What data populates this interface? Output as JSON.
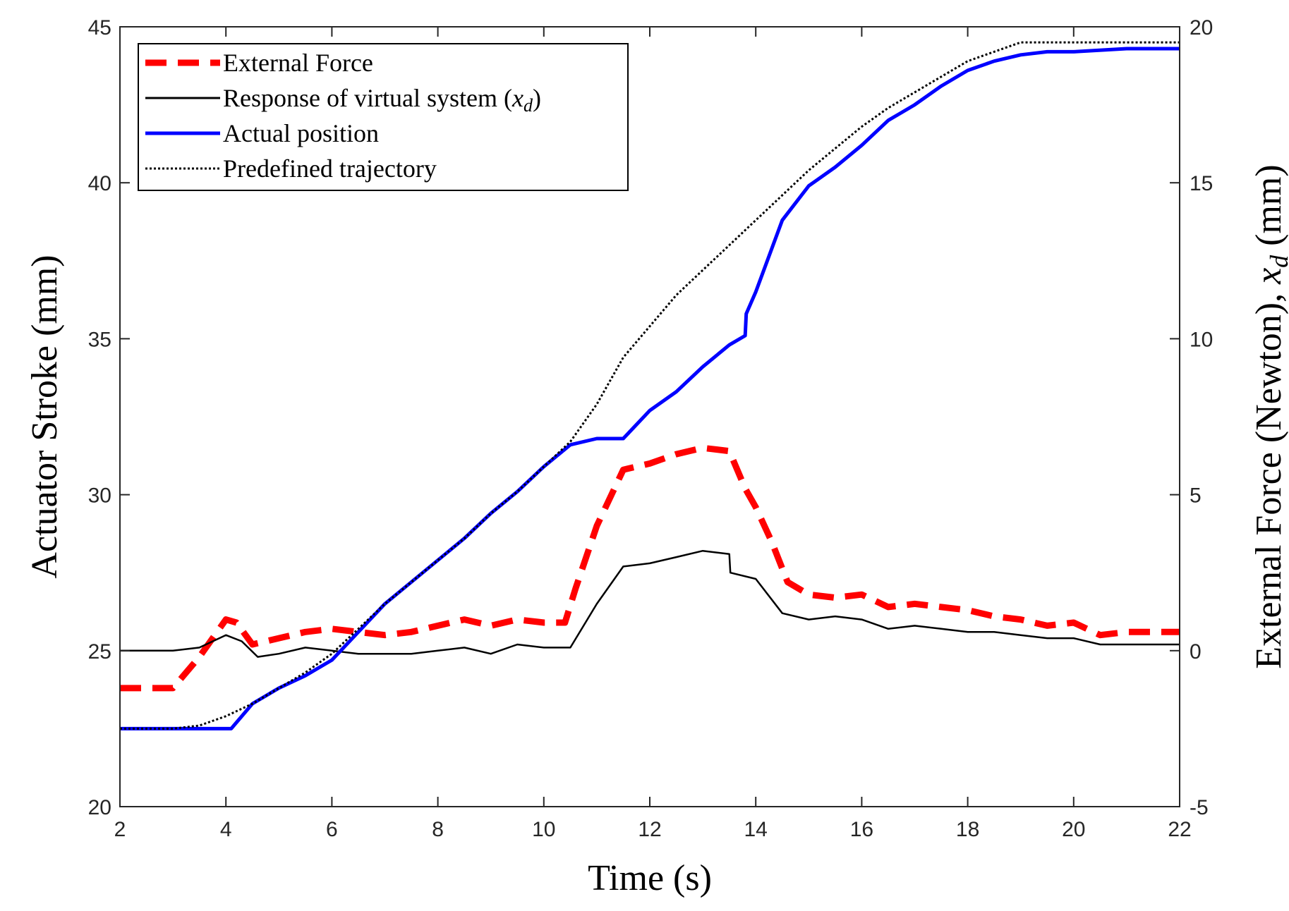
{
  "chart_data": {
    "type": "line",
    "title": "",
    "xlabel": "Time (s)",
    "ylabel_left": "Actuator Stroke (mm)",
    "ylabel_right": "External Force (Newton), x_d (mm)",
    "ylabel_right_parts": {
      "before": "External Force (Newton), ",
      "var": "x",
      "sub": "d",
      "after": " (mm)"
    },
    "xlim": [
      2,
      22
    ],
    "ylim_left": [
      20,
      45
    ],
    "ylim_right": [
      -5,
      20
    ],
    "xticks": [
      "2",
      "4",
      "6",
      "8",
      "10",
      "12",
      "14",
      "16",
      "18",
      "20",
      "22"
    ],
    "yticks_left": [
      "20",
      "25",
      "30",
      "35",
      "40",
      "45"
    ],
    "yticks_right": [
      "-5",
      "0",
      "5",
      "10",
      "15",
      "20"
    ],
    "legend_position": "top-left",
    "legend": [
      {
        "label": "External Force",
        "color": "#ff0000",
        "style": "dashed"
      },
      {
        "label": "Response of virtual system (",
        "var": "x",
        "sub": "d",
        "after": ")",
        "color": "#000000",
        "style": "solid"
      },
      {
        "label": "Actual position",
        "color": "#0000ff",
        "style": "solid"
      },
      {
        "label": "Predefined trajectory",
        "color": "#000000",
        "style": "dotted"
      }
    ],
    "series": [
      {
        "name": "External Force",
        "axis": "right",
        "color": "#ff0000",
        "style": "dashed",
        "x": [
          2.0,
          3.0,
          3.5,
          4.0,
          4.2,
          4.5,
          5.0,
          5.5,
          6.0,
          6.5,
          7.0,
          7.5,
          8.0,
          8.5,
          9.0,
          9.5,
          10.0,
          10.4,
          10.6,
          11.0,
          11.5,
          12.0,
          12.5,
          13.0,
          13.5,
          13.8,
          14.0,
          14.3,
          14.6,
          15.0,
          15.5,
          16.0,
          16.5,
          17.0,
          17.5,
          18.0,
          18.5,
          19.0,
          19.5,
          20.0,
          20.5,
          21.0,
          22.0
        ],
        "values": [
          -1.2,
          -1.2,
          -0.2,
          1.0,
          0.9,
          0.2,
          0.4,
          0.6,
          0.7,
          0.6,
          0.5,
          0.6,
          0.8,
          1.0,
          0.8,
          1.0,
          0.9,
          0.9,
          2.0,
          4.0,
          5.8,
          6.0,
          6.3,
          6.5,
          6.4,
          5.2,
          4.6,
          3.5,
          2.2,
          1.8,
          1.7,
          1.8,
          1.4,
          1.5,
          1.4,
          1.3,
          1.1,
          1.0,
          0.8,
          0.9,
          0.5,
          0.6,
          0.6
        ]
      },
      {
        "name": "Response of virtual system (x_d)",
        "axis": "right",
        "color": "#000000",
        "style": "solid",
        "x": [
          2.0,
          3.0,
          3.5,
          4.0,
          4.3,
          4.6,
          5.0,
          5.5,
          6.0,
          6.5,
          7.0,
          7.5,
          8.0,
          8.5,
          9.0,
          9.5,
          10.0,
          10.5,
          11.0,
          11.5,
          12.0,
          12.5,
          13.0,
          13.5,
          13.52,
          14.0,
          14.5,
          15.0,
          15.5,
          16.0,
          16.5,
          17.0,
          17.5,
          18.0,
          18.5,
          19.0,
          19.5,
          20.0,
          20.5,
          21.0,
          22.0
        ],
        "values": [
          0.0,
          0.0,
          0.1,
          0.5,
          0.3,
          -0.2,
          -0.1,
          0.1,
          0.0,
          -0.1,
          -0.1,
          -0.1,
          0.0,
          0.1,
          -0.1,
          0.2,
          0.1,
          0.1,
          1.5,
          2.7,
          2.8,
          3.0,
          3.2,
          3.1,
          2.5,
          2.3,
          1.2,
          1.0,
          1.1,
          1.0,
          0.7,
          0.8,
          0.7,
          0.6,
          0.6,
          0.5,
          0.4,
          0.4,
          0.2,
          0.2,
          0.2
        ]
      },
      {
        "name": "Actual position",
        "axis": "left",
        "color": "#0000ff",
        "style": "solid",
        "x": [
          2.0,
          4.1,
          4.5,
          5.0,
          5.5,
          6.0,
          6.5,
          7.0,
          7.5,
          8.0,
          8.5,
          9.0,
          9.5,
          10.0,
          10.5,
          11.0,
          11.5,
          12.0,
          12.5,
          13.0,
          13.5,
          13.8,
          13.82,
          14.0,
          14.5,
          15.0,
          15.5,
          16.0,
          16.5,
          17.0,
          17.5,
          18.0,
          18.5,
          19.0,
          19.5,
          20.0,
          21.0,
          22.0
        ],
        "values": [
          22.5,
          22.5,
          23.3,
          23.8,
          24.2,
          24.7,
          25.6,
          26.5,
          27.2,
          27.9,
          28.6,
          29.4,
          30.1,
          30.9,
          31.6,
          31.8,
          31.8,
          32.7,
          33.3,
          34.1,
          34.8,
          35.1,
          35.8,
          36.5,
          38.8,
          39.9,
          40.5,
          41.2,
          42.0,
          42.5,
          43.1,
          43.6,
          43.9,
          44.1,
          44.2,
          44.2,
          44.3,
          44.3
        ]
      },
      {
        "name": "Predefined trajectory",
        "axis": "left",
        "color": "#000000",
        "style": "dotted",
        "x": [
          2.0,
          3.0,
          3.5,
          4.0,
          4.5,
          5.0,
          5.5,
          6.0,
          6.5,
          7.0,
          7.5,
          8.0,
          8.5,
          9.0,
          9.5,
          10.0,
          10.5,
          11.0,
          11.5,
          12.0,
          12.5,
          13.0,
          13.5,
          14.0,
          14.5,
          15.0,
          15.5,
          16.0,
          16.5,
          17.0,
          17.5,
          18.0,
          18.5,
          19.0,
          19.5,
          20.0,
          21.0,
          22.0
        ],
        "values": [
          22.5,
          22.5,
          22.6,
          22.9,
          23.3,
          23.8,
          24.3,
          24.9,
          25.7,
          26.5,
          27.2,
          27.9,
          28.6,
          29.4,
          30.1,
          30.9,
          31.7,
          32.9,
          34.4,
          35.4,
          36.4,
          37.2,
          38.0,
          38.8,
          39.6,
          40.4,
          41.1,
          41.8,
          42.4,
          42.9,
          43.4,
          43.9,
          44.2,
          44.5,
          44.5,
          44.5,
          44.5,
          44.5
        ]
      }
    ]
  }
}
